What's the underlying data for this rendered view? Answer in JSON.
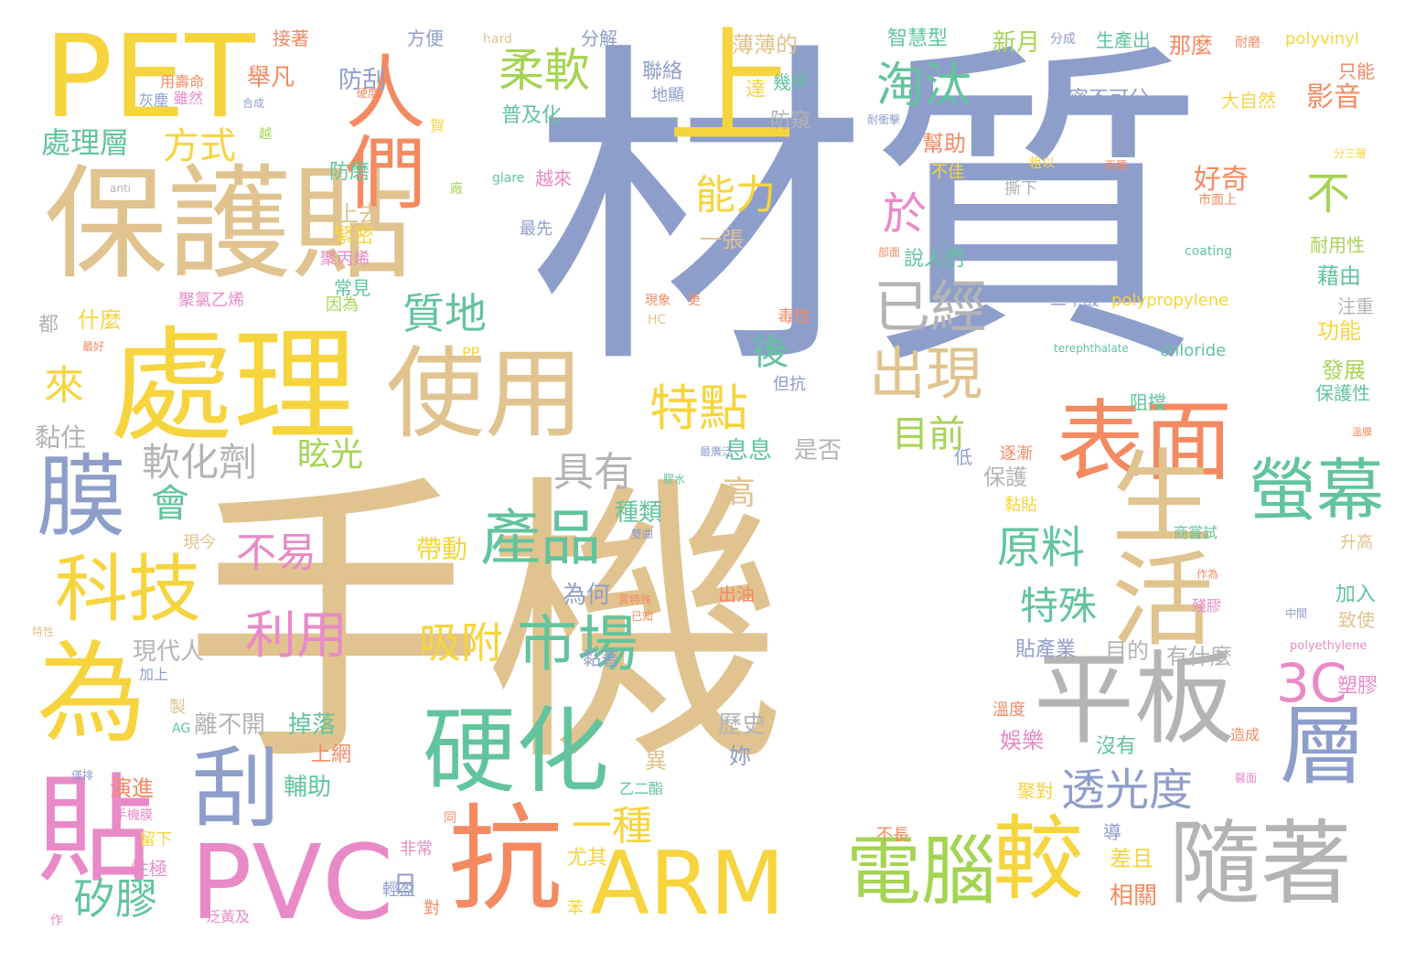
{
  "palette": {
    "tan": "#e0c38f",
    "blue": "#8e9ecb",
    "yellow": "#f6d43e",
    "coral": "#f48a62",
    "green": "#62c49c",
    "lime": "#a5d453",
    "gray": "#b4b4b4",
    "pink": "#e88ac7"
  },
  "words": [
    {
      "text": "材質",
      "color": "#8e9ecb"
    },
    {
      "text": "手機",
      "color": "#e0c38f"
    },
    {
      "text": "保護貼",
      "color": "#e0c38f"
    },
    {
      "text": "處理",
      "color": "#f6d43e"
    },
    {
      "text": "PET",
      "color": "#f6d43e"
    },
    {
      "text": "人們",
      "color": "#f48a62"
    },
    {
      "text": "使用",
      "color": "#e0c38f"
    },
    {
      "text": "上",
      "color": "#f6d43e"
    },
    {
      "text": "表面",
      "color": "#f48a62"
    },
    {
      "text": "生活",
      "color": "#e0c38f"
    },
    {
      "text": "平板",
      "color": "#b4b4b4"
    },
    {
      "text": "隨著",
      "color": "#b4b4b4"
    },
    {
      "text": "層",
      "color": "#8e9ecb"
    },
    {
      "text": "硬化",
      "color": "#62c49c"
    },
    {
      "text": "抗",
      "color": "#f48a62"
    },
    {
      "text": "ARM",
      "color": "#f6d43e"
    },
    {
      "text": "PVC",
      "color": "#e88ac7"
    },
    {
      "text": "電腦",
      "color": "#a5d453"
    },
    {
      "text": "較",
      "color": "#f6d43e"
    },
    {
      "text": "為",
      "color": "#f6d43e"
    },
    {
      "text": "貼",
      "color": "#e88ac7"
    },
    {
      "text": "膜",
      "color": "#8e9ecb"
    },
    {
      "text": "刮",
      "color": "#8e9ecb"
    },
    {
      "text": "科技",
      "color": "#f6d43e"
    },
    {
      "text": "螢幕",
      "color": "#62c49c"
    },
    {
      "text": "3C",
      "color": "#e88ac7"
    },
    {
      "text": "產品",
      "color": "#62c49c"
    },
    {
      "text": "市場",
      "color": "#62c49c"
    },
    {
      "text": "已經",
      "color": "#b4b4b4"
    },
    {
      "text": "出現",
      "color": "#e0c38f"
    },
    {
      "text": "淘汰",
      "color": "#62c49c"
    },
    {
      "text": "柔軟",
      "color": "#a5d453"
    },
    {
      "text": "特點",
      "color": "#f6d43e"
    },
    {
      "text": "能力",
      "color": "#f6d43e"
    },
    {
      "text": "質地",
      "color": "#62c49c"
    },
    {
      "text": "方式",
      "color": "#f6d43e"
    },
    {
      "text": "處理層",
      "color": "#62c49c"
    },
    {
      "text": "透光度",
      "color": "#8e9ecb"
    },
    {
      "text": "一種",
      "color": "#f6d43e"
    },
    {
      "text": "吸附",
      "color": "#f6d43e"
    },
    {
      "text": "利用",
      "color": "#e88ac7"
    },
    {
      "text": "軟化劑",
      "color": "#b4b4b4"
    },
    {
      "text": "具有",
      "color": "#b4b4b4"
    },
    {
      "text": "矽膠",
      "color": "#62c49c"
    },
    {
      "text": "原料",
      "color": "#62c49c"
    },
    {
      "text": "特殊",
      "color": "#62c49c"
    },
    {
      "text": "不",
      "color": "#a5d453"
    },
    {
      "text": "於",
      "color": "#e88ac7"
    },
    {
      "text": "後",
      "color": "#62c49c"
    },
    {
      "text": "高",
      "color": "#e0c38f"
    },
    {
      "text": "目前",
      "color": "#a5d453"
    },
    {
      "text": "眩光",
      "color": "#a5d453"
    },
    {
      "text": "會",
      "color": "#62c49c"
    },
    {
      "text": "來",
      "color": "#f6d43e"
    },
    {
      "text": "不易",
      "color": "#e88ac7"
    },
    {
      "text": "舉凡",
      "color": "#f48a62"
    },
    {
      "text": "防刮",
      "color": "#8e9ecb"
    },
    {
      "text": "接著",
      "color": "#f48a62"
    },
    {
      "text": "方便",
      "color": "#8e9ecb"
    },
    {
      "text": "hard",
      "color": "#e0c38f"
    },
    {
      "text": "分解",
      "color": "#8e9ecb"
    },
    {
      "text": "薄薄的",
      "color": "#e0c38f"
    },
    {
      "text": "智慧型",
      "color": "#62c49c"
    },
    {
      "text": "新月",
      "color": "#a5d453"
    },
    {
      "text": "分成",
      "color": "#8e9ecb"
    },
    {
      "text": "生產出",
      "color": "#62c49c"
    },
    {
      "text": "那麼",
      "color": "#f48a62"
    },
    {
      "text": "耐磨",
      "color": "#f48a62"
    },
    {
      "text": "polyvinyl",
      "color": "#f6d43e"
    },
    {
      "text": "用壽命",
      "color": "#f48a62"
    },
    {
      "text": "灰塵",
      "color": "#8e9ecb"
    },
    {
      "text": "雖然",
      "color": "#e88ac7"
    },
    {
      "text": "硬度",
      "color": "#f48a62"
    },
    {
      "text": "合成",
      "color": "#8e9ecb"
    },
    {
      "text": "越",
      "color": "#a5d453"
    },
    {
      "text": "聯絡",
      "color": "#8e9ecb"
    },
    {
      "text": "地顯",
      "color": "#8e9ecb"
    },
    {
      "text": "達",
      "color": "#f6d43e"
    },
    {
      "text": "幾乎",
      "color": "#62c49c"
    },
    {
      "text": "防窺",
      "color": "#b4b4b4"
    },
    {
      "text": "普及化",
      "color": "#62c49c"
    },
    {
      "text": "密不可分",
      "color": "#8e9ecb"
    },
    {
      "text": "大自然",
      "color": "#f6d43e"
    },
    {
      "text": "影音",
      "color": "#f48a62"
    },
    {
      "text": "只能",
      "color": "#f48a62"
    },
    {
      "text": "耐衝擊",
      "color": "#8e9ecb"
    },
    {
      "text": "幫助",
      "color": "#f48a62"
    },
    {
      "text": "不佳",
      "color": "#f6d43e"
    },
    {
      "text": "賀",
      "color": "#f6d43e"
    },
    {
      "text": "防磨",
      "color": "#62c49c"
    },
    {
      "text": "越來",
      "color": "#e88ac7"
    },
    {
      "text": "glare",
      "color": "#62c49c"
    },
    {
      "text": "最先",
      "color": "#8e9ecb"
    },
    {
      "text": "廠",
      "color": "#a5d453"
    },
    {
      "text": "anti",
      "color": "#b4b4b4"
    },
    {
      "text": "上去",
      "color": "#e0c38f"
    },
    {
      "text": "緊密",
      "color": "#f6d43e"
    },
    {
      "text": "聚丙烯",
      "color": "#e88ac7"
    },
    {
      "text": "一張",
      "color": "#e0c38f"
    },
    {
      "text": "說人們",
      "color": "#62c49c"
    },
    {
      "text": "粗以",
      "color": "#f6d43e"
    },
    {
      "text": "撕下",
      "color": "#b4b4b4"
    },
    {
      "text": "好奇",
      "color": "#f48a62"
    },
    {
      "text": "市面上",
      "color": "#f48a62"
    },
    {
      "text": "兩種",
      "color": "#f48a62"
    },
    {
      "text": "分三層",
      "color": "#f6d43e"
    },
    {
      "text": "耐用性",
      "color": "#a5d453"
    },
    {
      "text": "藉由",
      "color": "#62c49c"
    },
    {
      "text": "注重",
      "color": "#b4b4b4"
    },
    {
      "text": "功能",
      "color": "#f6d43e"
    },
    {
      "text": "發展",
      "color": "#a5d453"
    },
    {
      "text": "保護性",
      "color": "#62c49c"
    },
    {
      "text": "coating",
      "color": "#62c49c"
    },
    {
      "text": "二甲酸",
      "color": "#8e9ecb"
    },
    {
      "text": "polypropylene",
      "color": "#f6d43e"
    },
    {
      "text": "terephthalate",
      "color": "#62c49c"
    },
    {
      "text": "chloride",
      "color": "#62c49c"
    },
    {
      "text": "阻擋",
      "color": "#62c49c"
    },
    {
      "text": "溫膜",
      "color": "#f48a62"
    },
    {
      "text": "部面",
      "color": "#f48a62"
    },
    {
      "text": "毒性",
      "color": "#f48a62"
    },
    {
      "text": "現象",
      "color": "#f48a62"
    },
    {
      "text": "更",
      "color": "#f48a62"
    },
    {
      "text": "HC",
      "color": "#e0c38f"
    },
    {
      "text": "但抗",
      "color": "#8e9ecb"
    },
    {
      "text": "息息",
      "color": "#62c49c"
    },
    {
      "text": "是否",
      "color": "#b4b4b4"
    },
    {
      "text": "最廣泛",
      "color": "#8e9ecb"
    },
    {
      "text": "低",
      "color": "#8e9ecb"
    },
    {
      "text": "逐漸",
      "color": "#f48a62"
    },
    {
      "text": "保護",
      "color": "#b4b4b4"
    },
    {
      "text": "黏貼",
      "color": "#f6d43e"
    },
    {
      "text": "商嘗試",
      "color": "#62c49c"
    },
    {
      "text": "升高",
      "color": "#e0c38f"
    },
    {
      "text": "作為",
      "color": "#f48a62"
    },
    {
      "text": "殘膠",
      "color": "#e88ac7"
    },
    {
      "text": "加入",
      "color": "#62c49c"
    },
    {
      "text": "致使",
      "color": "#e0c38f"
    },
    {
      "text": "中間",
      "color": "#8e9ecb"
    },
    {
      "text": "polyethylene",
      "color": "#e88ac7"
    },
    {
      "text": "塑膠",
      "color": "#e88ac7"
    },
    {
      "text": "溫度",
      "color": "#f48a62"
    },
    {
      "text": "沒有",
      "color": "#62c49c"
    },
    {
      "text": "造成",
      "color": "#f48a62"
    },
    {
      "text": "聚對",
      "color": "#f6d43e"
    },
    {
      "text": "醫面",
      "color": "#e88ac7"
    },
    {
      "text": "不長",
      "color": "#f48a62"
    },
    {
      "text": "導",
      "color": "#8e9ecb"
    },
    {
      "text": "差且",
      "color": "#f6d43e"
    },
    {
      "text": "相關",
      "color": "#f48a62"
    },
    {
      "text": "黏住",
      "color": "#b4b4b4"
    },
    {
      "text": "都",
      "color": "#b4b4b4"
    },
    {
      "text": "什麼",
      "color": "#f6d43e"
    },
    {
      "text": "最好",
      "color": "#f48a62"
    },
    {
      "text": "聚氯乙烯",
      "color": "#e88ac7"
    },
    {
      "text": "常見",
      "color": "#62c49c"
    },
    {
      "text": "因為",
      "color": "#a5d453"
    },
    {
      "text": "現今",
      "color": "#e0c38f"
    },
    {
      "text": "特性",
      "color": "#e0c38f"
    },
    {
      "text": "現代人",
      "color": "#b4b4b4"
    },
    {
      "text": "加上",
      "color": "#8e9ecb"
    },
    {
      "text": "製",
      "color": "#e0c38f"
    },
    {
      "text": "AG",
      "color": "#62c49c"
    },
    {
      "text": "離不開",
      "color": "#b4b4b4"
    },
    {
      "text": "掉落",
      "color": "#62c49c"
    },
    {
      "text": "上網",
      "color": "#f48a62"
    },
    {
      "text": "演進",
      "color": "#f48a62"
    },
    {
      "text": "輔助",
      "color": "#62c49c"
    },
    {
      "text": "僅排",
      "color": "#8e9ecb"
    },
    {
      "text": "手機膜",
      "color": "#e88ac7"
    },
    {
      "text": "留下",
      "color": "#f6d43e"
    },
    {
      "text": "性極",
      "color": "#e88ac7"
    },
    {
      "text": "作",
      "color": "#e88ac7"
    },
    {
      "text": "泛黃及",
      "color": "#e88ac7"
    },
    {
      "text": "日",
      "color": "#8e9ecb"
    },
    {
      "text": "非常",
      "color": "#e88ac7"
    },
    {
      "text": "輕盈",
      "color": "#8e9ecb"
    },
    {
      "text": "同",
      "color": "#f48a62"
    },
    {
      "text": "對",
      "color": "#f48a62"
    },
    {
      "text": "尤其",
      "color": "#f6d43e"
    },
    {
      "text": "苯",
      "color": "#f6d43e"
    },
    {
      "text": "乙二酯",
      "color": "#62c49c"
    },
    {
      "text": "異",
      "color": "#e0c38f"
    },
    {
      "text": "妳",
      "color": "#8e9ecb"
    },
    {
      "text": "歷史",
      "color": "#b4b4b4"
    },
    {
      "text": "娛樂",
      "color": "#e88ac7"
    },
    {
      "text": "帶動",
      "color": "#f6d43e"
    },
    {
      "text": "種類",
      "color": "#62c49c"
    },
    {
      "text": "膠水",
      "color": "#62c49c"
    },
    {
      "text": "雙曲",
      "color": "#8e9ecb"
    },
    {
      "text": "為何",
      "color": "#8e9ecb"
    },
    {
      "text": "異特殊",
      "color": "#f48a62"
    },
    {
      "text": "出油",
      "color": "#f48a62"
    },
    {
      "text": "已知",
      "color": "#f48a62"
    },
    {
      "text": "黏著",
      "color": "#8e9ecb"
    },
    {
      "text": "有什麼",
      "color": "#b4b4b4"
    },
    {
      "text": "目的",
      "color": "#b4b4b4"
    },
    {
      "text": "貼產業",
      "color": "#8e9ecb"
    },
    {
      "text": "PP",
      "color": "#f6d43e"
    }
  ]
}
